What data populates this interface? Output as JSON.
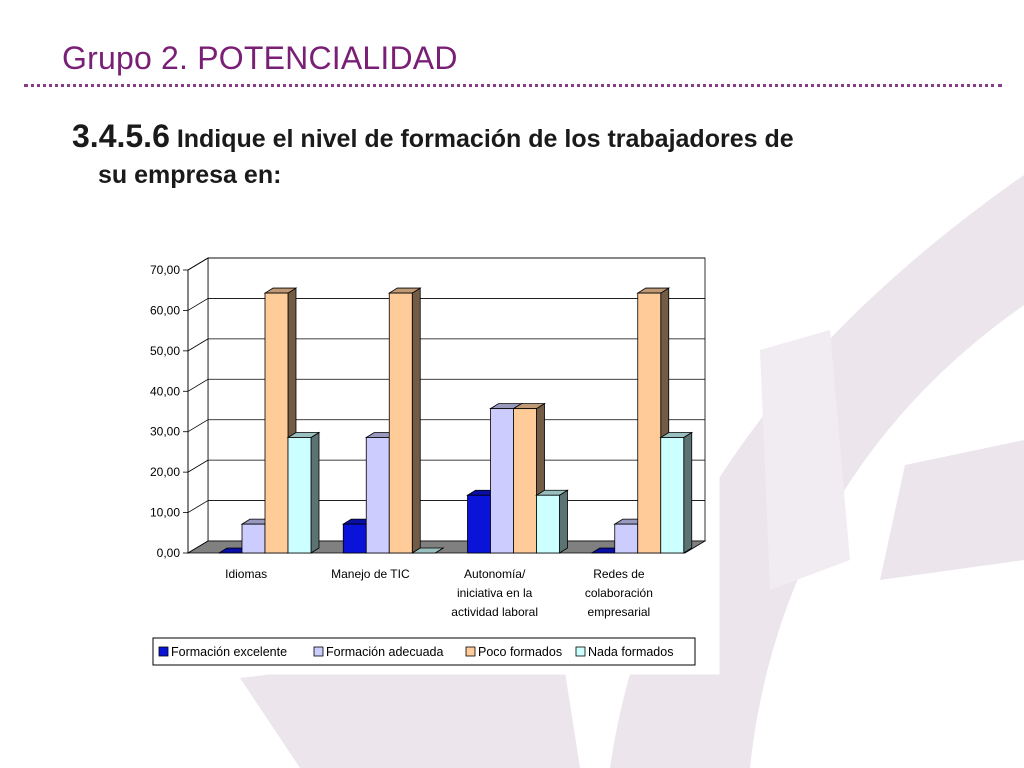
{
  "slide": {
    "title": "Grupo 2. POTENCIALIDAD",
    "question_number": "3.4.5.6",
    "question_text_line1": "Indique el nivel de formación de los trabajadores de",
    "question_text_line2": "su empresa en:"
  },
  "colors": {
    "title": "#7a1f76",
    "series": [
      "#0a14d8",
      "#ccccff",
      "#ffcc99",
      "#ccffff"
    ]
  },
  "chart_data": {
    "type": "bar",
    "three_d": true,
    "categories": [
      [
        "Idiomas"
      ],
      [
        "Manejo de TIC"
      ],
      [
        "Autonomía/",
        "iniciativa en la",
        "actividad laboral"
      ],
      [
        "Redes de",
        "colaboración",
        "empresarial"
      ]
    ],
    "series": [
      {
        "name": "Formación excelente",
        "values": [
          0,
          7.14,
          14.29,
          0
        ]
      },
      {
        "name": "Formación adecuada",
        "values": [
          7.14,
          28.57,
          35.71,
          7.14
        ]
      },
      {
        "name": "Poco formados",
        "values": [
          64.29,
          64.29,
          35.71,
          64.29
        ]
      },
      {
        "name": "Nada formados",
        "values": [
          28.57,
          0,
          14.29,
          28.57
        ]
      }
    ],
    "yticks": [
      "0,00",
      "10,00",
      "20,00",
      "30,00",
      "40,00",
      "50,00",
      "60,00",
      "70,00"
    ],
    "ylim": [
      0,
      70
    ],
    "grid": true,
    "legend": "bottom"
  }
}
